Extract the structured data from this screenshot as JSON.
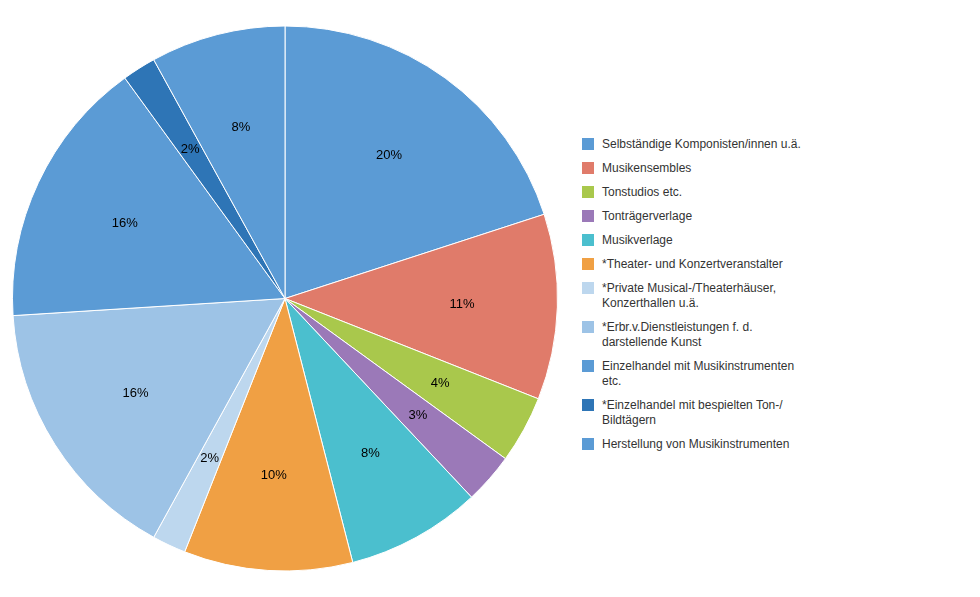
{
  "chart_data": {
    "type": "pie",
    "categories": [
      "Selbständige Komponisten/innen u.ä.",
      "Musikensembles",
      "Tonstudios etc.",
      "Tonträgerverlage",
      "Musikverlage",
      "*Theater- und Konzertveranstalter",
      "*Private Musical-/Theaterhäuser,\nKonzerthallen u.ä.",
      "*Erbr.v.Dienstleistungen f. d.\ndarstellende Kunst",
      "Einzelhandel mit Musikinstrumenten\netc.",
      "*Einzelhandel mit bespielten Ton-/\nBildtägern",
      "Herstellung von Musikinstrumenten"
    ],
    "values": [
      20,
      11,
      4,
      3,
      8,
      10,
      2,
      16,
      16,
      2,
      8
    ],
    "value_labels": [
      "20%",
      "11%",
      "4%",
      "3%",
      "8%",
      "10%",
      "2%",
      "16%",
      "16%",
      "2%",
      "8%"
    ],
    "colors": [
      "#5B9BD5",
      "#E07B6A",
      "#A9C84C",
      "#9B79B8",
      "#4BBFCE",
      "#F0A044",
      "#BDD7EE",
      "#9DC3E6",
      "#5B9BD5",
      "#2E75B6",
      "#5B9BD5"
    ],
    "data_labels": true,
    "legend": "right"
  }
}
